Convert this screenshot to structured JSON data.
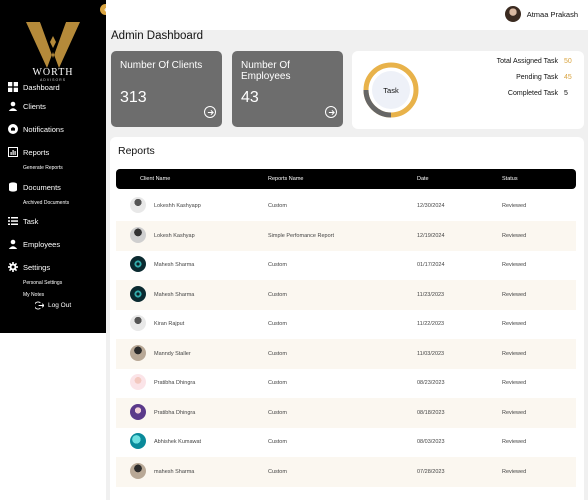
{
  "brand": {
    "name": "WORTH",
    "tagline": "ADVISORS"
  },
  "sidebar": {
    "items": [
      {
        "label": "Dashboard",
        "icon": "grid-icon"
      },
      {
        "label": "Clients",
        "icon": "person-icon"
      },
      {
        "label": "Notifications",
        "icon": "bell-icon"
      },
      {
        "label": "Reports",
        "icon": "report-icon"
      },
      {
        "label": "Documents",
        "icon": "database-icon"
      },
      {
        "label": "Task",
        "icon": "task-list-icon"
      },
      {
        "label": "Employees",
        "icon": "person-icon"
      },
      {
        "label": "Settings",
        "icon": "gear-icon"
      }
    ],
    "subitems": {
      "generate_reports": "Generate Reports",
      "archived_documents": "Archived Documents",
      "personal_settings": "Personal Settings",
      "my_notes": "My Notes"
    },
    "logout": "Log Out"
  },
  "header": {
    "user_name": "Atmaa Prakash"
  },
  "page_title": "Admin Dashboard",
  "stats": [
    {
      "label": "Number Of Clients",
      "value": "313"
    },
    {
      "label": "Number Of Employees",
      "value": "43"
    }
  ],
  "tasks": {
    "center_label": "Task",
    "rows": [
      {
        "label": "Total Assigned Task",
        "value": "50",
        "color": "#d9a441"
      },
      {
        "label": "Pending Task",
        "value": "45",
        "color": "#d9a441"
      },
      {
        "label": "Completed Task",
        "value": "5",
        "color": "#111111"
      }
    ],
    "colors": {
      "pending": "#e8b24a",
      "completed": "#666666"
    }
  },
  "reports": {
    "title": "Reports",
    "columns": [
      "Client Name",
      "Reports Name",
      "Date",
      "Status"
    ],
    "rows": [
      {
        "client": "Lokeshh Kashyapp",
        "report": "Custom",
        "date": "12/30/2024",
        "status": "Reviewed"
      },
      {
        "client": "Lokesh Kashyap",
        "report": "Simple Perfomance Report",
        "date": "12/19/2024",
        "status": "Reviewed"
      },
      {
        "client": "Mahesh Sharma",
        "report": "Custom",
        "date": "01/17/2024",
        "status": "Reviewed"
      },
      {
        "client": "Mahesh Sharma",
        "report": "Custom",
        "date": "11/23/2023",
        "status": "Reviewed"
      },
      {
        "client": "Kiran Rajput",
        "report": "Custom",
        "date": "11/22/2023",
        "status": "Reviewed"
      },
      {
        "client": "Manndy Staller",
        "report": "Custom",
        "date": "11/03/2023",
        "status": "Reviewed"
      },
      {
        "client": "Pratibha Dhingra",
        "report": "Custom",
        "date": "08/23/2023",
        "status": "Reviewed"
      },
      {
        "client": "Pratibha Dhingra",
        "report": "Custom",
        "date": "08/18/2023",
        "status": "Reviewed"
      },
      {
        "client": "Abhishek Kumawat",
        "report": "Custom",
        "date": "08/03/2023",
        "status": "Reviewed"
      },
      {
        "client": "mahesh Sharma",
        "report": "Custom",
        "date": "07/28/2023",
        "status": "Reviewed"
      }
    ]
  }
}
